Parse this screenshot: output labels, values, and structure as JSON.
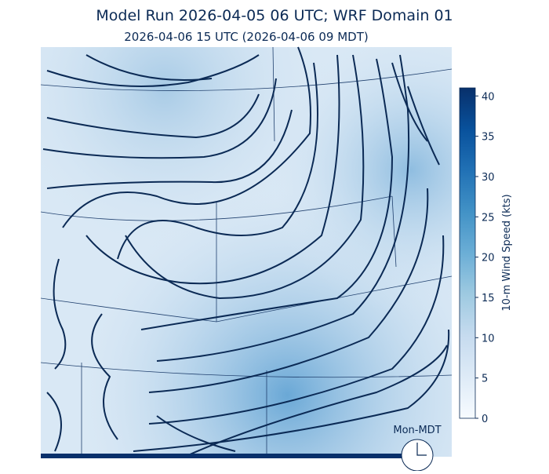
{
  "header": {
    "title": "Model Run 2026-04-05 06 UTC; WRF Domain 01",
    "subtitle": "2026-04-06 15 UTC  (2026-04-06 09 MDT)"
  },
  "colorbar": {
    "label": "10-m Wind Speed (kts)",
    "range": [
      0,
      41
    ],
    "ticks": [
      0,
      5,
      10,
      15,
      20,
      25,
      30,
      35,
      40
    ],
    "colors": [
      "#f7fbff",
      "#deebf7",
      "#c6dbef",
      "#9ecae1",
      "#6baed6",
      "#4292c6",
      "#2171b5",
      "#08519c",
      "#08306b"
    ]
  },
  "clock": {
    "label": "Mon-MDT"
  }
}
